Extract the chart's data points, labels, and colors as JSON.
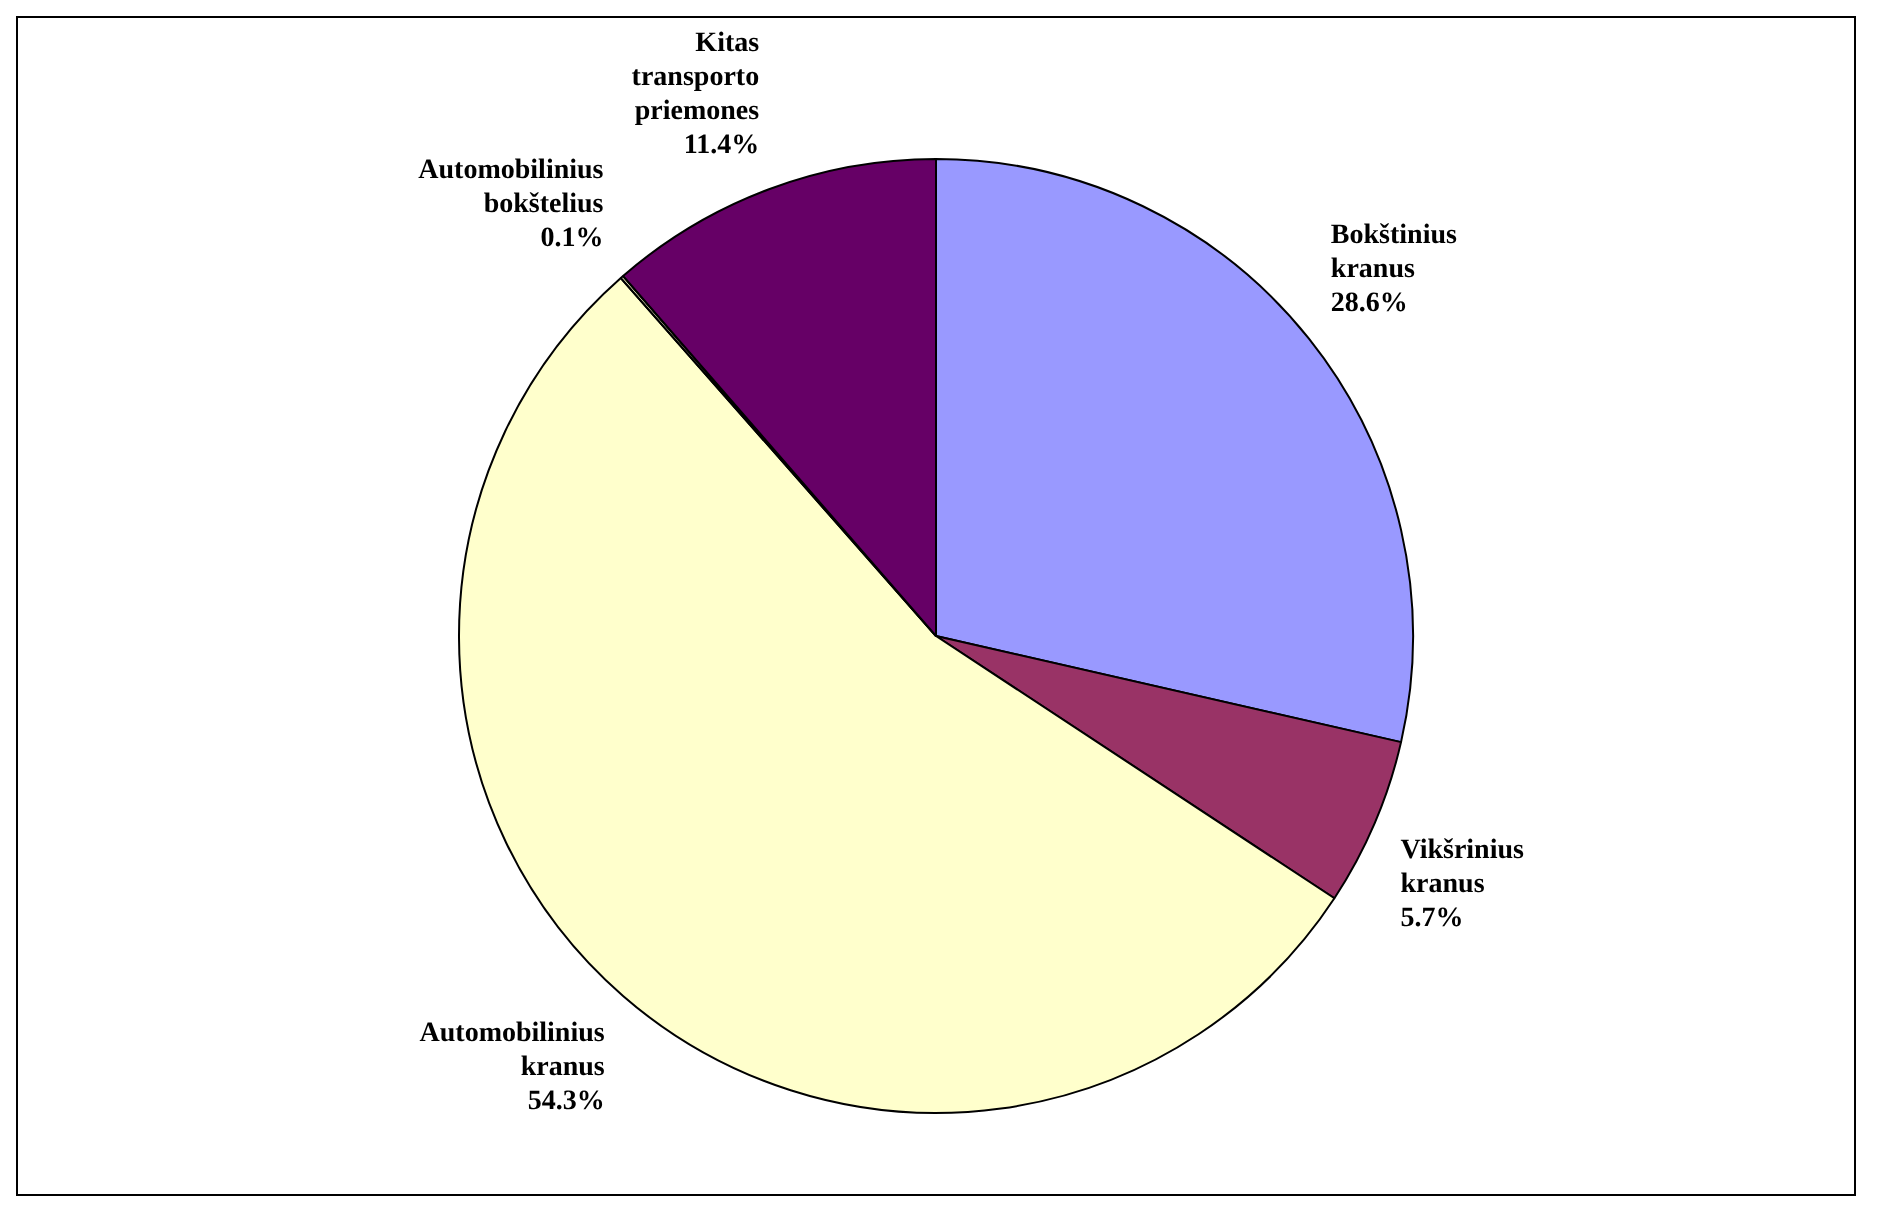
{
  "chart_data": {
    "type": "pie",
    "categories": [
      "Bokštinius kranus",
      "Vikšrinius kranus",
      "Automobilinius kranus",
      "Automobilinius bokštelius",
      "Kitas transporto priemones"
    ],
    "values": [
      28.6,
      5.7,
      54.3,
      0.1,
      11.4
    ],
    "colors": [
      "#9999ff",
      "#993366",
      "#ffffcc",
      "#ffffcc",
      "#660066"
    ],
    "value_labels": [
      "28.6%",
      "5.7%",
      "54.3%",
      "0.1%",
      "11.4%"
    ],
    "legend": false
  }
}
